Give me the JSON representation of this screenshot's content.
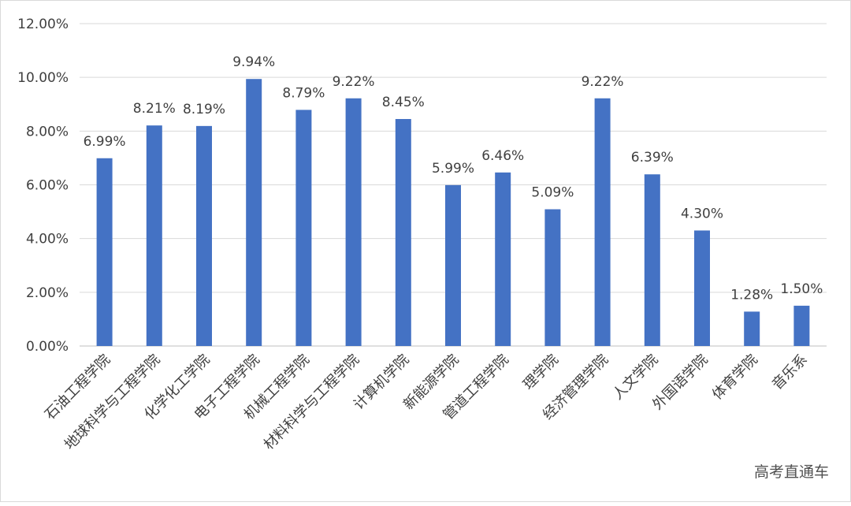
{
  "chart_data": {
    "type": "bar",
    "categories": [
      "石油工程学院",
      "地球科学与工程学院",
      "化学化工学院",
      "电子工程学院",
      "机械工程学院",
      "材料科学与工程学院",
      "计算机学院",
      "新能源学院",
      "管道工程学院",
      "理学院",
      "经济管理学院",
      "人文学院",
      "外国语学院",
      "体育学院",
      "音乐系"
    ],
    "values": [
      6.99,
      8.21,
      8.19,
      9.94,
      8.79,
      9.22,
      8.45,
      5.99,
      6.46,
      5.09,
      9.22,
      6.39,
      4.3,
      1.28,
      1.5
    ],
    "data_labels": [
      "6.99%",
      "8.21%",
      "8.19%",
      "9.94%",
      "8.79%",
      "9.22%",
      "8.45%",
      "5.99%",
      "6.46%",
      "5.09%",
      "9.22%",
      "6.39%",
      "4.30%",
      "1.28%",
      "1.50%"
    ],
    "yticks": [
      "0.00%",
      "2.00%",
      "4.00%",
      "6.00%",
      "8.00%",
      "10.00%",
      "12.00%"
    ],
    "ylim": [
      0,
      12
    ],
    "grid": true,
    "bar_color": "#4472c4",
    "title": "",
    "xlabel": "",
    "ylabel": ""
  },
  "watermark": "高考直通车"
}
